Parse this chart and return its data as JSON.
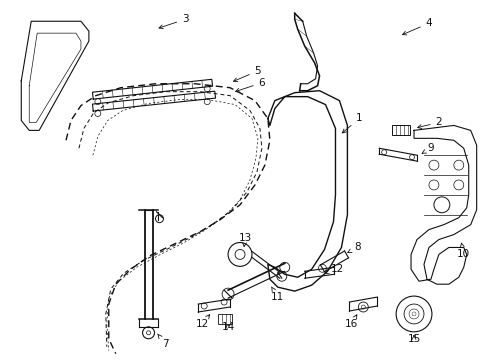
{
  "bg_color": "#ffffff",
  "line_color": "#111111",
  "fig_width": 4.89,
  "fig_height": 3.6,
  "dpi": 100,
  "parts": {
    "part3_label": "3",
    "part4_label": "4",
    "part5_label": "5",
    "part6_label": "6",
    "part1_label": "1",
    "part2_label": "2",
    "part7_label": "7",
    "part8_label": "8",
    "part9_label": "9",
    "part10_label": "10",
    "part11_label": "11",
    "part12a_label": "12",
    "part12b_label": "12",
    "part13_label": "13",
    "part14_label": "14",
    "part15_label": "15",
    "part16_label": "16"
  }
}
